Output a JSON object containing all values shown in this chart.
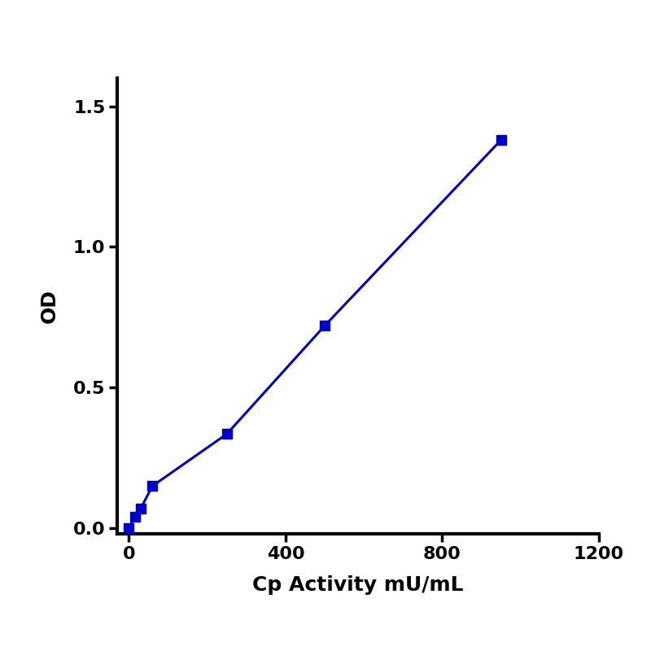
{
  "x": [
    0,
    15,
    30,
    60,
    250,
    500,
    950
  ],
  "y": [
    0.0,
    0.04,
    0.07,
    0.15,
    0.335,
    0.72,
    1.38
  ],
  "line_color": "#0000CC",
  "marker_color": "#0000CC",
  "marker": "s",
  "marker_size": 9,
  "line_width": 2.2,
  "xlabel": "Cp Activity mU/mL",
  "ylabel": "OD",
  "xlim": [
    -30,
    1200
  ],
  "ylim": [
    -0.02,
    1.6
  ],
  "xticks": [
    0,
    400,
    800,
    1200
  ],
  "yticks": [
    0.0,
    0.5,
    1.0,
    1.5
  ],
  "xlabel_fontsize": 18,
  "ylabel_fontsize": 18,
  "tick_fontsize": 16,
  "spine_linewidth": 3.0,
  "background_color": "#ffffff"
}
